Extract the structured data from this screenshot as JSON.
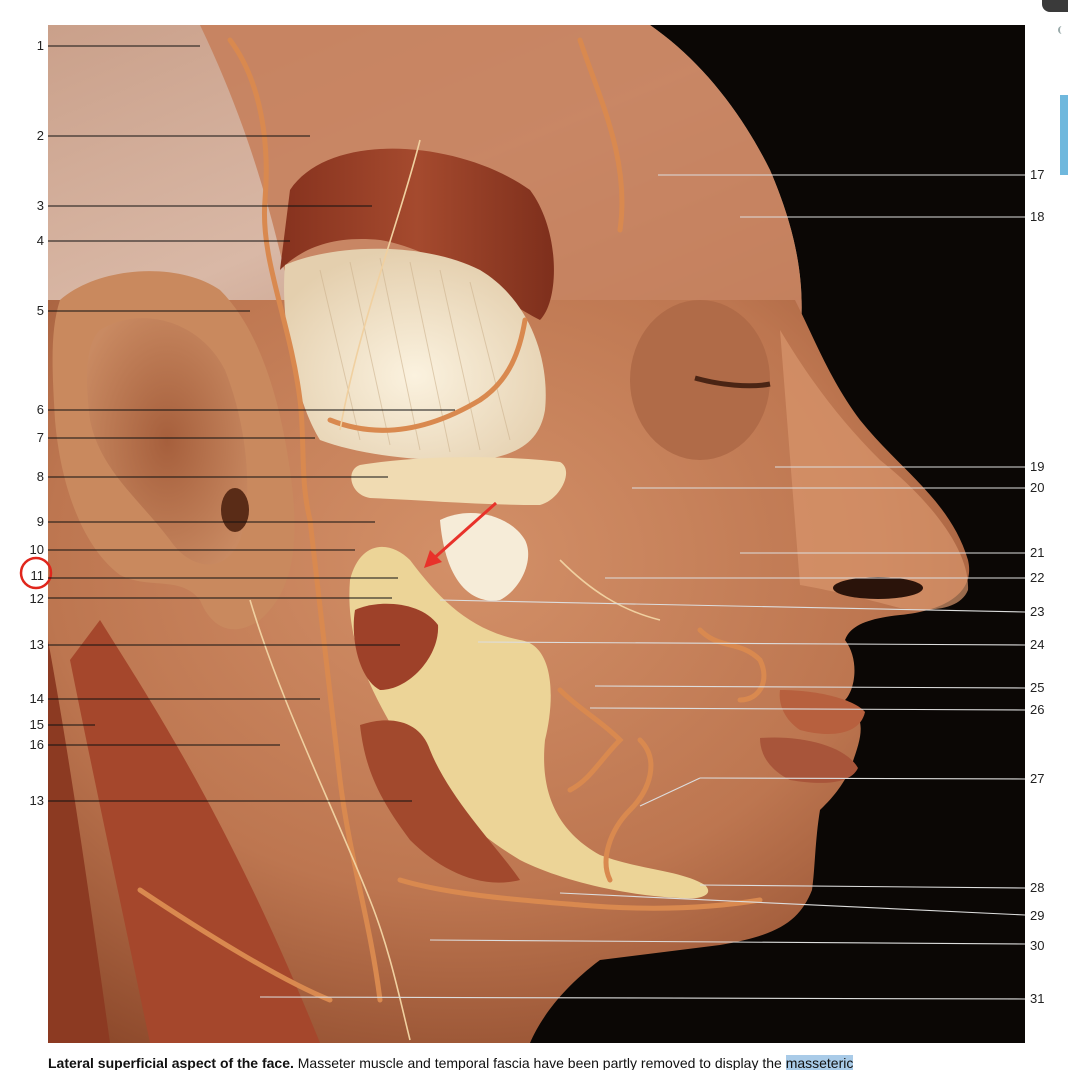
{
  "figure": {
    "left_labels": [
      "1",
      "2",
      "3",
      "4",
      "5",
      "6",
      "7",
      "8",
      "9",
      "10",
      "11",
      "12",
      "13",
      "14",
      "15",
      "16",
      "13"
    ],
    "right_labels": [
      "17",
      "18",
      "19",
      "20",
      "21",
      "22",
      "23",
      "24",
      "25",
      "26",
      "27",
      "28",
      "29",
      "30",
      "31"
    ],
    "highlighted_label": "11",
    "colors": {
      "background": "#0b0705",
      "skin": "#c07a54",
      "muscle": "#9c3f26",
      "tendon": "#efe0c4",
      "bone": "#ecd497",
      "vessel": "#d9894f",
      "annotation_circle": "#e0261c",
      "arrow": "#e8322a",
      "leader_line": "#111111"
    }
  },
  "caption": {
    "bold": "Lateral superficial aspect of the face.",
    "text": " Masseter muscle and temporal fascia have been partly removed to display the ",
    "highlight": "masseteric"
  }
}
